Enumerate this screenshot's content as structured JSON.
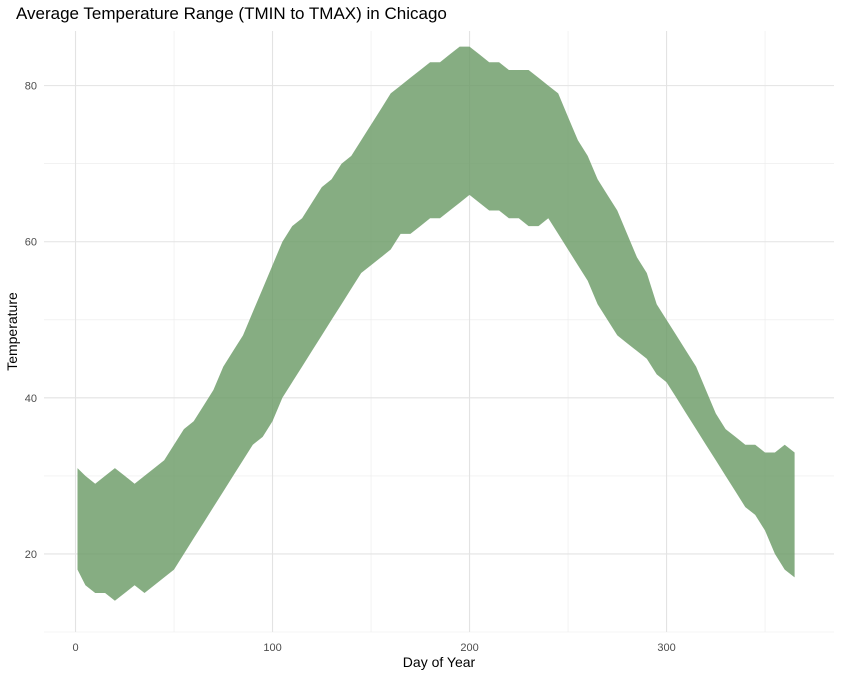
{
  "chart_data": {
    "type": "area",
    "title": "Average Temperature Range (TMIN to TMAX) in Chicago",
    "xlabel": "Day of Year",
    "ylabel": "Temperature",
    "xlim": [
      -16,
      385
    ],
    "ylim": [
      10,
      87
    ],
    "x_ticks": [
      0,
      100,
      200,
      300
    ],
    "x_tick_labels": [
      "0",
      "100",
      "200",
      "300"
    ],
    "y_ticks": [
      20,
      40,
      60,
      80
    ],
    "y_tick_labels": [
      "20",
      "40",
      "60",
      "80"
    ],
    "grid": true,
    "legend": "none",
    "fill_color": "#6b9b66",
    "fill_opacity": 0.82,
    "series": [
      {
        "x": [
          1,
          5,
          10,
          15,
          20,
          25,
          30,
          35,
          40,
          45,
          50,
          55,
          60,
          65,
          70,
          75,
          80,
          85,
          90,
          95,
          100,
          105,
          110,
          115,
          120,
          125,
          130,
          135,
          140,
          145,
          150,
          155,
          160,
          165,
          170,
          175,
          180,
          185,
          190,
          195,
          200,
          205,
          210,
          215,
          220,
          225,
          230,
          235,
          240,
          245,
          250,
          255,
          260,
          265,
          270,
          275,
          280,
          285,
          290,
          295,
          300,
          305,
          310,
          315,
          320,
          325,
          330,
          335,
          340,
          345,
          350,
          355,
          360,
          365
        ],
        "tmin": [
          18,
          16,
          15,
          15,
          14,
          15,
          16,
          15,
          16,
          17,
          18,
          20,
          22,
          24,
          26,
          28,
          30,
          32,
          34,
          35,
          37,
          40,
          42,
          44,
          46,
          48,
          50,
          52,
          54,
          56,
          57,
          58,
          59,
          61,
          61,
          62,
          63,
          63,
          64,
          65,
          66,
          65,
          64,
          64,
          63,
          63,
          62,
          62,
          63,
          61,
          59,
          57,
          55,
          52,
          50,
          48,
          47,
          46,
          45,
          43,
          42,
          40,
          38,
          36,
          34,
          32,
          30,
          28,
          26,
          25,
          23,
          20,
          18,
          17
        ],
        "tmax": [
          31,
          30,
          29,
          30,
          31,
          30,
          29,
          30,
          31,
          32,
          34,
          36,
          37,
          39,
          41,
          44,
          46,
          48,
          51,
          54,
          57,
          60,
          62,
          63,
          65,
          67,
          68,
          70,
          71,
          73,
          75,
          77,
          79,
          80,
          81,
          82,
          83,
          83,
          84,
          85,
          85,
          84,
          83,
          83,
          82,
          82,
          82,
          81,
          80,
          79,
          76,
          73,
          71,
          68,
          66,
          64,
          61,
          58,
          56,
          52,
          50,
          48,
          46,
          44,
          41,
          38,
          36,
          35,
          34,
          34,
          33,
          33,
          34,
          33
        ]
      }
    ]
  }
}
